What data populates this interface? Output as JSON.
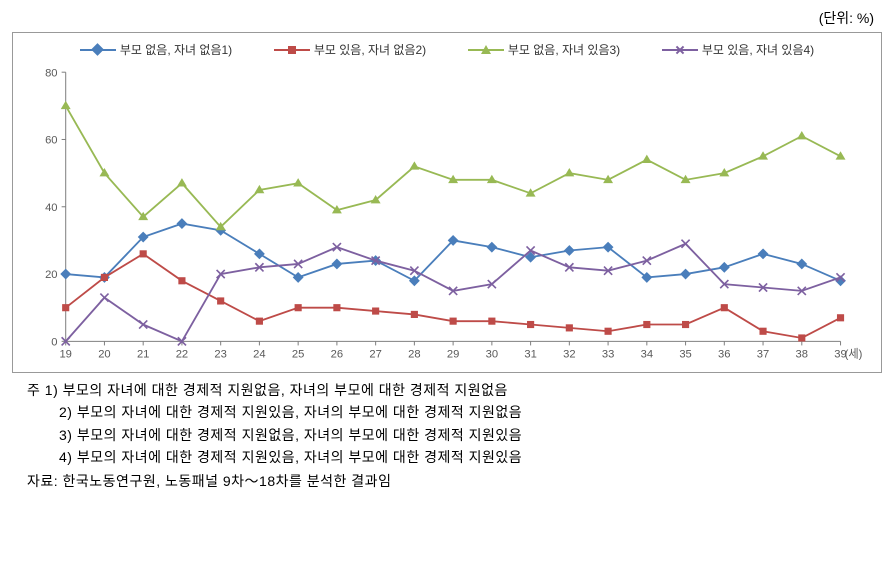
{
  "unit_label": "(단위: %)",
  "legend": {
    "s1": "부모 없음, 자녀 없음1)",
    "s2": "부모 있음, 자녀 없음2)",
    "s3": "부모 없음, 자녀 있음3)",
    "s4": "부모 있음, 자녀 있음4)"
  },
  "chart": {
    "type": "line",
    "ylim": [
      0,
      80
    ],
    "ytick_step": 20,
    "xvalues": [
      19,
      20,
      21,
      22,
      23,
      24,
      25,
      26,
      27,
      28,
      29,
      30,
      31,
      32,
      33,
      34,
      35,
      36,
      37,
      38,
      39
    ],
    "x_axis_suffix": "(세)",
    "colors": {
      "s1": "#4a7ebb",
      "s2": "#be4b48",
      "s3": "#98b954",
      "s4": "#7d60a0"
    },
    "line_width": 1.8,
    "marker_size": 6,
    "markers": {
      "s1": "diamond",
      "s2": "square",
      "s3": "triangle",
      "s4": "x"
    },
    "axis_color": "#808080",
    "tick_color": "#808080",
    "label_color": "#595959",
    "label_fontsize": 11,
    "series": {
      "s1": [
        20,
        19,
        31,
        35,
        33,
        26,
        19,
        23,
        24,
        18,
        30,
        28,
        25,
        27,
        28,
        19,
        20,
        22,
        26,
        23,
        18
      ],
      "s2": [
        10,
        19,
        26,
        18,
        12,
        6,
        10,
        10,
        9,
        8,
        6,
        6,
        5,
        4,
        3,
        5,
        5,
        10,
        3,
        1,
        7
      ],
      "s3": [
        70,
        50,
        37,
        47,
        34,
        45,
        47,
        39,
        42,
        52,
        48,
        48,
        44,
        50,
        48,
        54,
        48,
        50,
        55,
        61,
        55
      ],
      "s4": [
        0,
        13,
        5,
        0,
        20,
        22,
        23,
        28,
        24,
        21,
        15,
        17,
        27,
        22,
        21,
        24,
        29,
        17,
        16,
        15,
        19
      ]
    }
  },
  "notes": {
    "prefix": "주",
    "n1": "1)  부모의 자녀에 대한 경제적 지원없음, 자녀의 부모에 대한 경제적 지원없음",
    "n2": "2)  부모의 자녀에 대한 경제적 지원있음, 자녀의 부모에 대한 경제적 지원없음",
    "n3": "3)  부모의 자녀에 대한 경제적 지원없음, 자녀의 부모에 대한 경제적 지원있음",
    "n4": "4)  부모의 자녀에 대한 경제적 지원있음, 자녀의 부모에 대한 경제적 지원있음"
  },
  "source": "자료: 한국노동연구원, 노동패널 9차～18차를 분석한 결과임"
}
